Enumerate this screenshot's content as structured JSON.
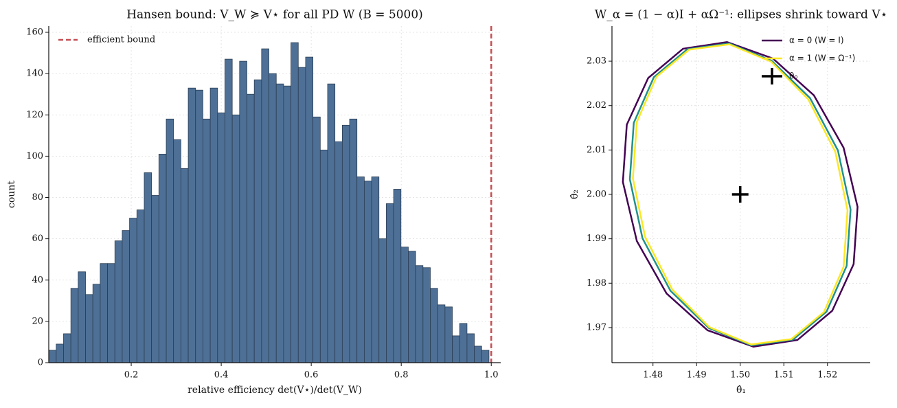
{
  "chart_data": [
    {
      "type": "histogram",
      "title": "Hansen bound: V_W ≽ V⋆ for all PD W  (B = 5000)",
      "x_label": "relative efficiency  det(V⋆)/det(V_W)",
      "y_label": "count",
      "bins": [
        0.017,
        0.0333,
        0.0496,
        0.0659,
        0.0822,
        0.0985,
        0.1148,
        0.1311,
        0.1474,
        0.1637,
        0.18,
        0.1963,
        0.2126,
        0.2289,
        0.2452,
        0.2615,
        0.2778,
        0.2941,
        0.3104,
        0.3267,
        0.343,
        0.3593,
        0.3756,
        0.3919,
        0.4082,
        0.4245,
        0.4408,
        0.4571,
        0.4734,
        0.4897,
        0.506,
        0.5223,
        0.5386,
        0.5549,
        0.5712,
        0.5875,
        0.6038,
        0.6201,
        0.6364,
        0.6527,
        0.669,
        0.6853,
        0.7016,
        0.7179,
        0.7342,
        0.7505,
        0.7668,
        0.7831,
        0.7994,
        0.8157,
        0.832,
        0.8483,
        0.8646,
        0.8809,
        0.8972,
        0.9135,
        0.9298,
        0.9461,
        0.9624,
        0.9787,
        0.995
      ],
      "values": [
        6,
        9,
        14,
        36,
        44,
        33,
        38,
        48,
        48,
        59,
        64,
        70,
        74,
        92,
        81,
        101,
        118,
        108,
        94,
        133,
        132,
        118,
        133,
        121,
        147,
        120,
        146,
        130,
        137,
        152,
        140,
        135,
        134,
        155,
        143,
        148,
        119,
        103,
        135,
        107,
        115,
        118,
        90,
        88,
        90,
        60,
        77,
        84,
        56,
        54,
        47,
        46,
        36,
        28,
        27,
        13,
        19,
        14,
        8,
        6
      ],
      "color": "#4e7096",
      "reference_line": {
        "value": 1,
        "label": "efficient bound",
        "color": "#c44e52"
      },
      "xlim": [
        0.0168,
        1.021
      ],
      "ylim": [
        0,
        163
      ],
      "xticks": [
        0.2,
        0.4,
        0.6,
        0.8,
        {
          "value": 1,
          "label": "1.0"
        }
      ],
      "yticks": [
        0,
        20,
        40,
        60,
        80,
        100,
        120,
        140,
        160
      ],
      "grid": true,
      "legend": "upper left"
    },
    {
      "type": "line",
      "title": "W_α = (1 − α)I + αΩ⁻¹: ellipses shrink toward V⋆",
      "x_label": "θ̂₁",
      "y_label": "θ̂₂",
      "series": [
        {
          "name": "α = 0  (W = I)",
          "color": "#440154",
          "x": [
            1.5269,
            1.5237,
            1.5169,
            1.5075,
            1.497,
            1.4869,
            1.4789,
            1.474,
            1.4731,
            1.4763,
            1.4831,
            1.4925,
            1.503,
            1.5131,
            1.5211,
            1.526
          ],
          "values": [
            1.9972,
            2.0105,
            2.0223,
            2.0306,
            2.0343,
            2.0328,
            2.0262,
            2.0157,
            2.0028,
            1.9895,
            1.9777,
            1.9694,
            1.9657,
            1.9672,
            1.9738,
            1.9843
          ]
        },
        {
          "color": "#21918c",
          "x": [
            1.5253,
            1.5224,
            1.516,
            1.5072,
            1.4974,
            1.4879,
            1.4802,
            1.4756,
            1.4747,
            1.4776,
            1.484,
            1.4928,
            1.5026,
            1.5121,
            1.5198,
            1.5244
          ],
          "values": [
            1.9966,
            2.0099,
            2.0217,
            2.0301,
            2.034,
            2.0327,
            2.0264,
            2.0161,
            2.0034,
            1.9901,
            1.9783,
            1.9699,
            1.966,
            1.9673,
            1.9736,
            1.9839
          ]
        },
        {
          "name": "α = 1  (W = Ω⁻¹)",
          "color": "#fde725",
          "x": [
            1.5246,
            1.5218,
            1.5156,
            1.5071,
            1.4975,
            1.4883,
            1.4808,
            1.4763,
            1.4754,
            1.4782,
            1.4844,
            1.4929,
            1.5025,
            1.5117,
            1.5192,
            1.5237
          ],
          "values": [
            1.9964,
            2.0096,
            2.0214,
            2.0299,
            2.0338,
            2.0326,
            2.0265,
            2.0163,
            2.0036,
            1.9904,
            1.9786,
            1.9701,
            1.9662,
            1.9674,
            1.9735,
            1.9837
          ]
        },
        {
          "name": "θ₀",
          "color": "#000000",
          "marker": "+",
          "x": [
            1.5
          ],
          "values": [
            2
          ]
        }
      ],
      "xlim": [
        1.4706,
        1.5298
      ],
      "ylim": [
        1.9621,
        2.0379
      ],
      "xticks": [
        1.48,
        1.49,
        {
          "value": 1.5,
          "label": "1.50"
        },
        1.51,
        1.52
      ],
      "yticks": [
        1.97,
        1.98,
        1.99,
        {
          "value": 2,
          "label": "2.00"
        },
        2.01,
        2.02,
        2.03
      ],
      "grid": true,
      "legend": "upper right"
    }
  ]
}
